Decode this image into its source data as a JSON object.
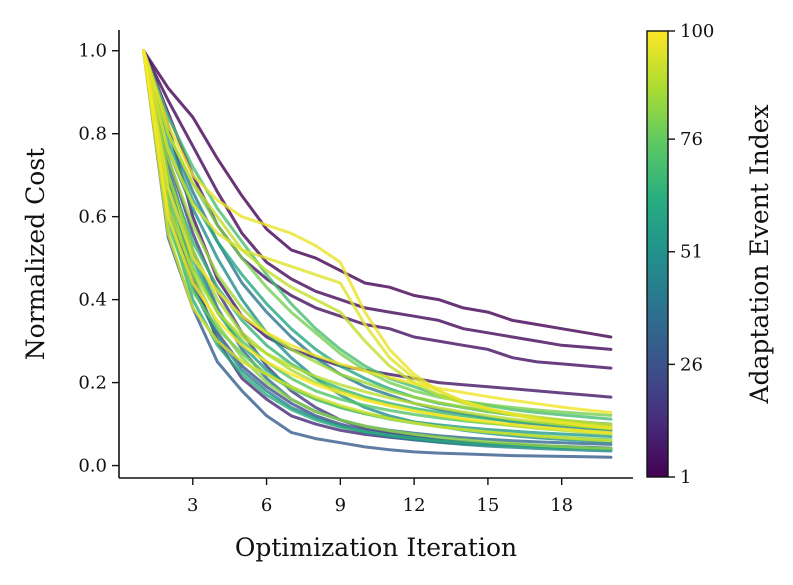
{
  "chart_data": {
    "type": "line",
    "xlabel": "Optimization Iteration",
    "ylabel": "Normalized Cost",
    "xlim": [
      0,
      20.9
    ],
    "ylim": [
      -0.03,
      1.05
    ],
    "xticks": [
      3,
      6,
      9,
      12,
      15,
      18
    ],
    "xtick_labels": [
      "3",
      "6",
      "9",
      "12",
      "15",
      "18"
    ],
    "yticks": [
      0.0,
      0.2,
      0.4,
      0.6,
      0.8,
      1.0
    ],
    "ytick_labels": [
      "0.0",
      "0.2",
      "0.4",
      "0.6",
      "0.8",
      "1.0"
    ],
    "grid": false,
    "colorbar": {
      "label": "Adaptation Event Index",
      "colormap": "viridis",
      "range": [
        1,
        100
      ],
      "ticks": [
        1,
        26,
        51,
        76,
        100
      ],
      "tick_labels": [
        "1",
        "26",
        "51",
        "76",
        "100"
      ]
    },
    "x": [
      1,
      2,
      3,
      4,
      5,
      6,
      7,
      8,
      9,
      10,
      11,
      12,
      13,
      14,
      15,
      16,
      17,
      18,
      19,
      20
    ],
    "series": [
      {
        "name": "event 1",
        "event": 1,
        "values": [
          1.0,
          0.91,
          0.84,
          0.74,
          0.65,
          0.57,
          0.52,
          0.5,
          0.47,
          0.44,
          0.43,
          0.41,
          0.4,
          0.38,
          0.37,
          0.35,
          0.34,
          0.33,
          0.32,
          0.31
        ]
      },
      {
        "name": "event 3",
        "event": 3,
        "values": [
          1.0,
          0.88,
          0.77,
          0.66,
          0.56,
          0.49,
          0.45,
          0.42,
          0.4,
          0.38,
          0.37,
          0.36,
          0.35,
          0.33,
          0.32,
          0.31,
          0.3,
          0.29,
          0.285,
          0.28
        ]
      },
      {
        "name": "event 5",
        "event": 5,
        "values": [
          1.0,
          0.85,
          0.7,
          0.58,
          0.5,
          0.45,
          0.41,
          0.38,
          0.36,
          0.34,
          0.33,
          0.31,
          0.3,
          0.29,
          0.28,
          0.26,
          0.25,
          0.245,
          0.24,
          0.235
        ]
      },
      {
        "name": "event 7",
        "event": 7,
        "values": [
          1.0,
          0.82,
          0.6,
          0.45,
          0.36,
          0.31,
          0.28,
          0.26,
          0.24,
          0.23,
          0.22,
          0.21,
          0.2,
          0.195,
          0.19,
          0.185,
          0.18,
          0.175,
          0.17,
          0.165
        ]
      },
      {
        "name": "event 12",
        "event": 12,
        "values": [
          1.0,
          0.7,
          0.46,
          0.3,
          0.21,
          0.16,
          0.12,
          0.1,
          0.085,
          0.075,
          0.068,
          0.062,
          0.057,
          0.053,
          0.05,
          0.048,
          0.046,
          0.044,
          0.042,
          0.04
        ]
      },
      {
        "name": "event 18",
        "event": 18,
        "values": [
          1.0,
          0.74,
          0.56,
          0.42,
          0.32,
          0.24,
          0.18,
          0.14,
          0.11,
          0.09,
          0.08,
          0.07,
          0.062,
          0.056,
          0.052,
          0.049,
          0.046,
          0.043,
          0.041,
          0.039
        ]
      },
      {
        "name": "event 24",
        "event": 24,
        "values": [
          1.0,
          0.64,
          0.44,
          0.32,
          0.24,
          0.19,
          0.15,
          0.12,
          0.1,
          0.085,
          0.075,
          0.068,
          0.062,
          0.058,
          0.054,
          0.051,
          0.048,
          0.046,
          0.044,
          0.042
        ]
      },
      {
        "name": "event 30",
        "event": 30,
        "values": [
          1.0,
          0.55,
          0.38,
          0.25,
          0.18,
          0.12,
          0.08,
          0.065,
          0.055,
          0.045,
          0.038,
          0.033,
          0.03,
          0.028,
          0.026,
          0.024,
          0.023,
          0.022,
          0.021,
          0.02
        ]
      },
      {
        "name": "event 35",
        "event": 35,
        "values": [
          1.0,
          0.72,
          0.52,
          0.38,
          0.28,
          0.21,
          0.16,
          0.13,
          0.11,
          0.095,
          0.085,
          0.078,
          0.072,
          0.067,
          0.063,
          0.06,
          0.057,
          0.055,
          0.053,
          0.051
        ]
      },
      {
        "name": "event 40",
        "event": 40,
        "values": [
          1.0,
          0.8,
          0.66,
          0.54,
          0.44,
          0.37,
          0.31,
          0.26,
          0.22,
          0.19,
          0.17,
          0.15,
          0.135,
          0.125,
          0.115,
          0.105,
          0.1,
          0.095,
          0.09,
          0.085
        ]
      },
      {
        "name": "event 45",
        "event": 45,
        "values": [
          1.0,
          0.62,
          0.43,
          0.31,
          0.23,
          0.18,
          0.14,
          0.115,
          0.095,
          0.08,
          0.07,
          0.062,
          0.056,
          0.051,
          0.047,
          0.044,
          0.041,
          0.039,
          0.037,
          0.035
        ]
      },
      {
        "name": "event 50",
        "event": 50,
        "values": [
          1.0,
          0.76,
          0.62,
          0.5,
          0.4,
          0.32,
          0.26,
          0.21,
          0.17,
          0.14,
          0.12,
          0.105,
          0.095,
          0.085,
          0.078,
          0.072,
          0.067,
          0.063,
          0.06,
          0.057
        ]
      },
      {
        "name": "event 55",
        "event": 55,
        "values": [
          1.0,
          0.68,
          0.5,
          0.37,
          0.29,
          0.23,
          0.19,
          0.16,
          0.14,
          0.125,
          0.115,
          0.105,
          0.098,
          0.092,
          0.087,
          0.083,
          0.079,
          0.076,
          0.073,
          0.07
        ]
      },
      {
        "name": "event 60",
        "event": 60,
        "values": [
          1.0,
          0.78,
          0.64,
          0.54,
          0.46,
          0.39,
          0.33,
          0.28,
          0.24,
          0.21,
          0.185,
          0.165,
          0.15,
          0.14,
          0.13,
          0.122,
          0.115,
          0.109,
          0.104,
          0.1
        ]
      },
      {
        "name": "event 63",
        "event": 63,
        "values": [
          1.0,
          0.6,
          0.4,
          0.29,
          0.22,
          0.17,
          0.135,
          0.11,
          0.093,
          0.082,
          0.073,
          0.066,
          0.06,
          0.055,
          0.051,
          0.048,
          0.045,
          0.043,
          0.041,
          0.039
        ]
      },
      {
        "name": "event 66",
        "event": 66,
        "values": [
          1.0,
          0.7,
          0.54,
          0.43,
          0.35,
          0.29,
          0.245,
          0.21,
          0.185,
          0.165,
          0.15,
          0.138,
          0.128,
          0.12,
          0.113,
          0.107,
          0.102,
          0.097,
          0.093,
          0.089
        ]
      },
      {
        "name": "event 70",
        "event": 70,
        "values": [
          1.0,
          0.84,
          0.72,
          0.62,
          0.54,
          0.46,
          0.39,
          0.33,
          0.28,
          0.24,
          0.21,
          0.19,
          0.17,
          0.155,
          0.145,
          0.135,
          0.128,
          0.122,
          0.117,
          0.112
        ]
      },
      {
        "name": "event 73",
        "event": 73,
        "values": [
          1.0,
          0.66,
          0.48,
          0.37,
          0.3,
          0.25,
          0.21,
          0.18,
          0.16,
          0.145,
          0.133,
          0.123,
          0.115,
          0.108,
          0.102,
          0.097,
          0.092,
          0.088,
          0.084,
          0.08
        ]
      },
      {
        "name": "event 76",
        "event": 76,
        "values": [
          1.0,
          0.58,
          0.42,
          0.33,
          0.27,
          0.22,
          0.185,
          0.16,
          0.14,
          0.125,
          0.112,
          0.102,
          0.094,
          0.087,
          0.081,
          0.076,
          0.072,
          0.068,
          0.065,
          0.062
        ]
      },
      {
        "name": "event 79",
        "event": 79,
        "values": [
          1.0,
          0.8,
          0.68,
          0.58,
          0.5,
          0.43,
          0.37,
          0.32,
          0.27,
          0.23,
          0.2,
          0.18,
          0.165,
          0.155,
          0.147,
          0.14,
          0.134,
          0.129,
          0.125,
          0.121
        ]
      },
      {
        "name": "event 82",
        "event": 82,
        "values": [
          1.0,
          0.64,
          0.46,
          0.34,
          0.26,
          0.2,
          0.16,
          0.13,
          0.11,
          0.095,
          0.084,
          0.075,
          0.068,
          0.062,
          0.057,
          0.053,
          0.049,
          0.046,
          0.043,
          0.041
        ]
      },
      {
        "name": "event 85",
        "event": 85,
        "values": [
          1.0,
          0.74,
          0.58,
          0.46,
          0.38,
          0.32,
          0.28,
          0.25,
          0.22,
          0.2,
          0.18,
          0.165,
          0.152,
          0.141,
          0.131,
          0.122,
          0.114,
          0.107,
          0.1,
          0.094
        ]
      },
      {
        "name": "event 87",
        "event": 87,
        "values": [
          1.0,
          0.7,
          0.52,
          0.4,
          0.32,
          0.27,
          0.23,
          0.2,
          0.18,
          0.16,
          0.145,
          0.132,
          0.121,
          0.111,
          0.103,
          0.096,
          0.09,
          0.085,
          0.08,
          0.076
        ]
      },
      {
        "name": "event 89",
        "event": 89,
        "values": [
          1.0,
          0.62,
          0.47,
          0.37,
          0.31,
          0.27,
          0.24,
          0.215,
          0.195,
          0.178,
          0.163,
          0.15,
          0.139,
          0.129,
          0.12,
          0.112,
          0.105,
          0.099,
          0.094,
          0.089
        ]
      },
      {
        "name": "event 91",
        "event": 91,
        "values": [
          1.0,
          0.8,
          0.68,
          0.6,
          0.52,
          0.47,
          0.43,
          0.4,
          0.37,
          0.3,
          0.24,
          0.2,
          0.17,
          0.15,
          0.135,
          0.125,
          0.117,
          0.11,
          0.104,
          0.099
        ]
      },
      {
        "name": "event 93",
        "event": 93,
        "values": [
          1.0,
          0.56,
          0.38,
          0.3,
          0.25,
          0.22,
          0.19,
          0.165,
          0.145,
          0.128,
          0.114,
          0.103,
          0.094,
          0.087,
          0.081,
          0.076,
          0.071,
          0.067,
          0.063,
          0.06
        ]
      },
      {
        "name": "event 95",
        "event": 95,
        "values": [
          1.0,
          0.76,
          0.63,
          0.56,
          0.52,
          0.5,
          0.48,
          0.46,
          0.44,
          0.34,
          0.26,
          0.21,
          0.18,
          0.155,
          0.138,
          0.124,
          0.113,
          0.104,
          0.097,
          0.091
        ]
      },
      {
        "name": "event 97",
        "event": 97,
        "values": [
          1.0,
          0.82,
          0.7,
          0.64,
          0.6,
          0.58,
          0.56,
          0.53,
          0.49,
          0.37,
          0.28,
          0.22,
          0.18,
          0.155,
          0.137,
          0.123,
          0.112,
          0.103,
          0.096,
          0.09
        ]
      },
      {
        "name": "event 98",
        "event": 98,
        "values": [
          1.0,
          0.67,
          0.5,
          0.42,
          0.36,
          0.32,
          0.29,
          0.265,
          0.245,
          0.228,
          0.212,
          0.198,
          0.186,
          0.176,
          0.166,
          0.157,
          0.149,
          0.141,
          0.134,
          0.128
        ]
      },
      {
        "name": "event 100",
        "event": 100,
        "values": [
          1.0,
          0.6,
          0.44,
          0.35,
          0.29,
          0.25,
          0.22,
          0.195,
          0.175,
          0.158,
          0.144,
          0.132,
          0.122,
          0.113,
          0.106,
          0.099,
          0.093,
          0.088,
          0.083,
          0.079
        ]
      }
    ]
  }
}
